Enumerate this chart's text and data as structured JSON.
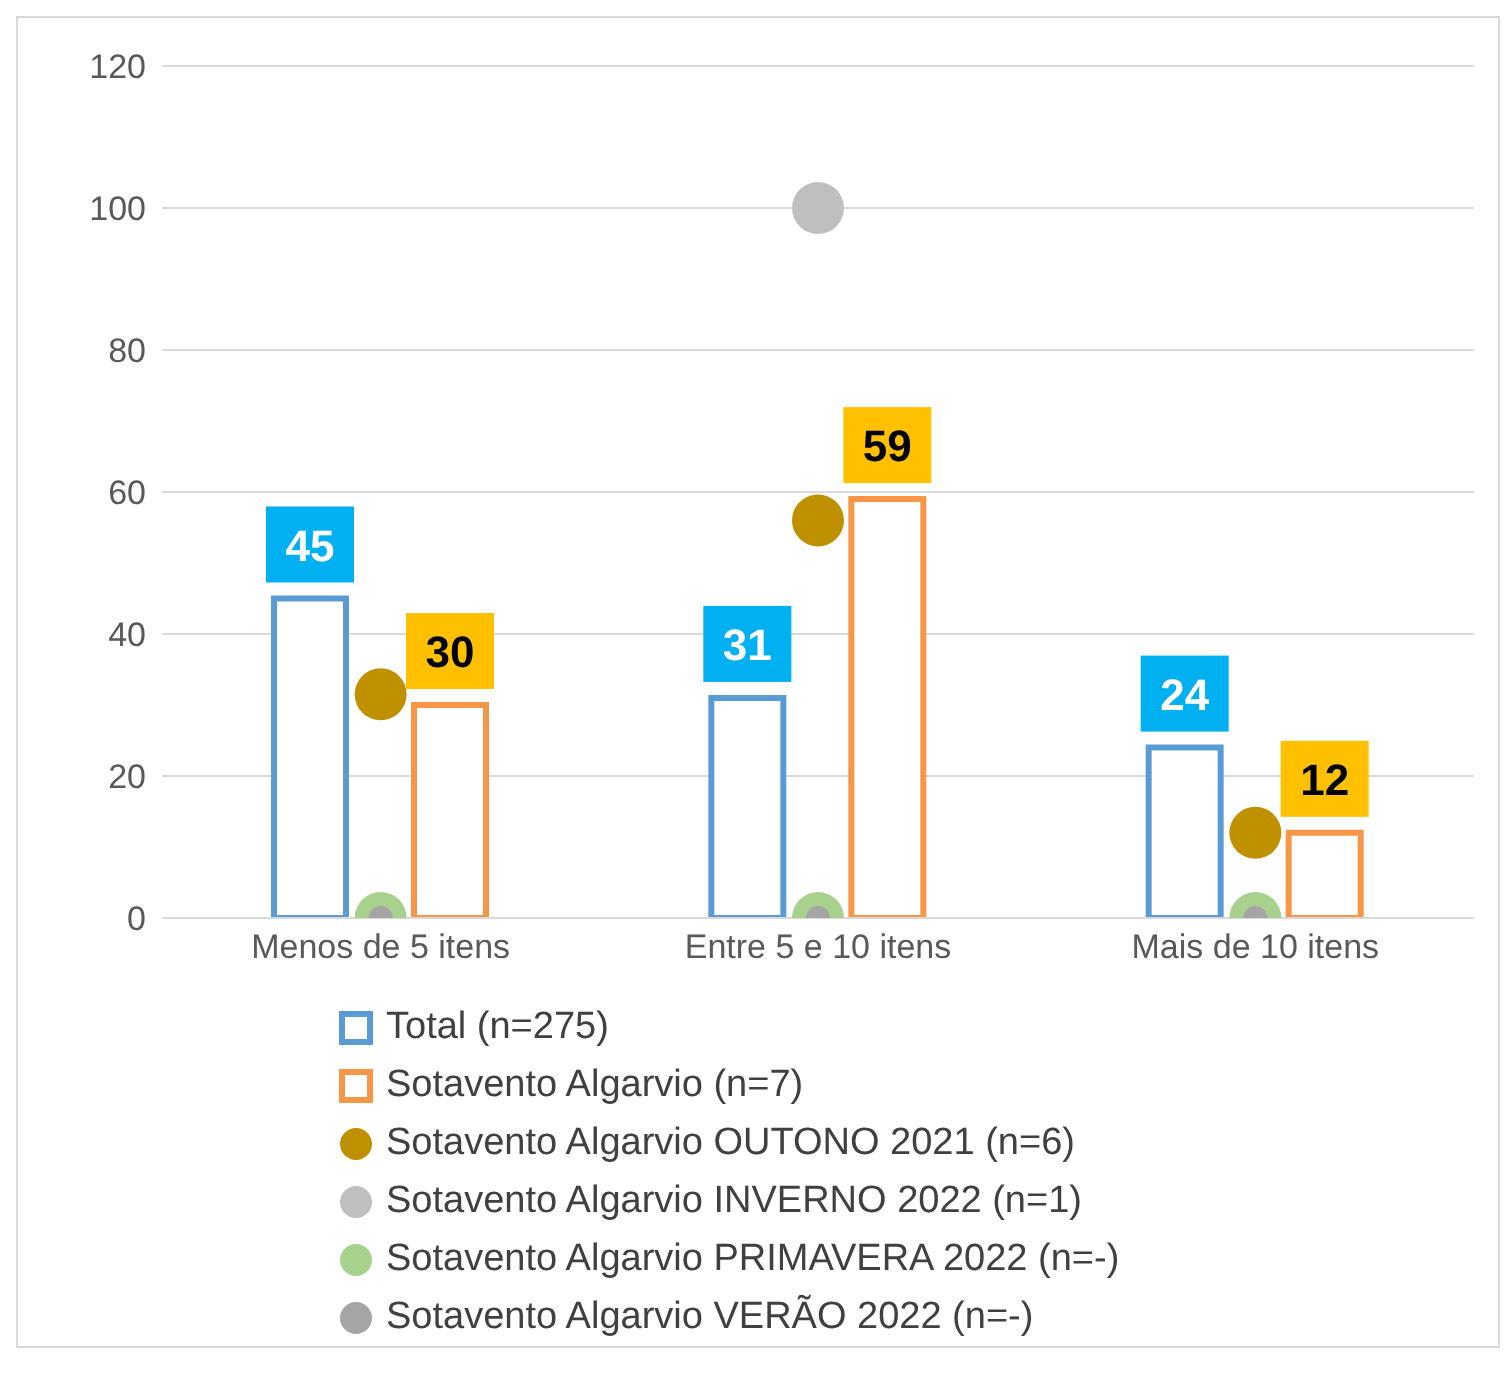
{
  "chart_data": {
    "type": "bar",
    "categories": [
      "Menos de 5 itens",
      "Entre 5 e 10 itens",
      "Mais de 10 itens"
    ],
    "series": [
      {
        "name": "Total (n=275)",
        "color": "#5b9bd5",
        "values": [
          45,
          31,
          24
        ],
        "value_labels": [
          "45",
          "31",
          "24"
        ]
      },
      {
        "name": "Sotavento Algarvio (n=7)",
        "color": "#f79646",
        "values": [
          30,
          59,
          12
        ],
        "value_labels": [
          "30",
          "59",
          "12"
        ]
      },
      {
        "name": "Sotavento Algarvio OUTONO 2021 (n=6)",
        "type": "scatter",
        "marker": "circle",
        "color": "#bf9000",
        "values": [
          31.5,
          56,
          12
        ]
      },
      {
        "name": "Sotavento Algarvio INVERNO 2022 (n=1)",
        "type": "scatter",
        "marker": "circle",
        "color": "#bfbfbf",
        "values": [
          null,
          100,
          null
        ]
      },
      {
        "name": "Sotavento Algarvio PRIMAVERA 2022 (n=-)",
        "type": "scatter",
        "marker": "circle",
        "color": "#a9d18e",
        "values": [
          0,
          0,
          0
        ]
      },
      {
        "name": "Sotavento Algarvio VERÃO 2022 (n=-)",
        "type": "scatter",
        "marker": "circle",
        "color": "#a5a5a5",
        "values": [
          0,
          0,
          0
        ]
      }
    ],
    "ylim": [
      0,
      120
    ],
    "yticks": [
      0,
      20,
      40,
      60,
      80,
      100,
      120
    ],
    "grid": "y",
    "legend": "bottom"
  }
}
